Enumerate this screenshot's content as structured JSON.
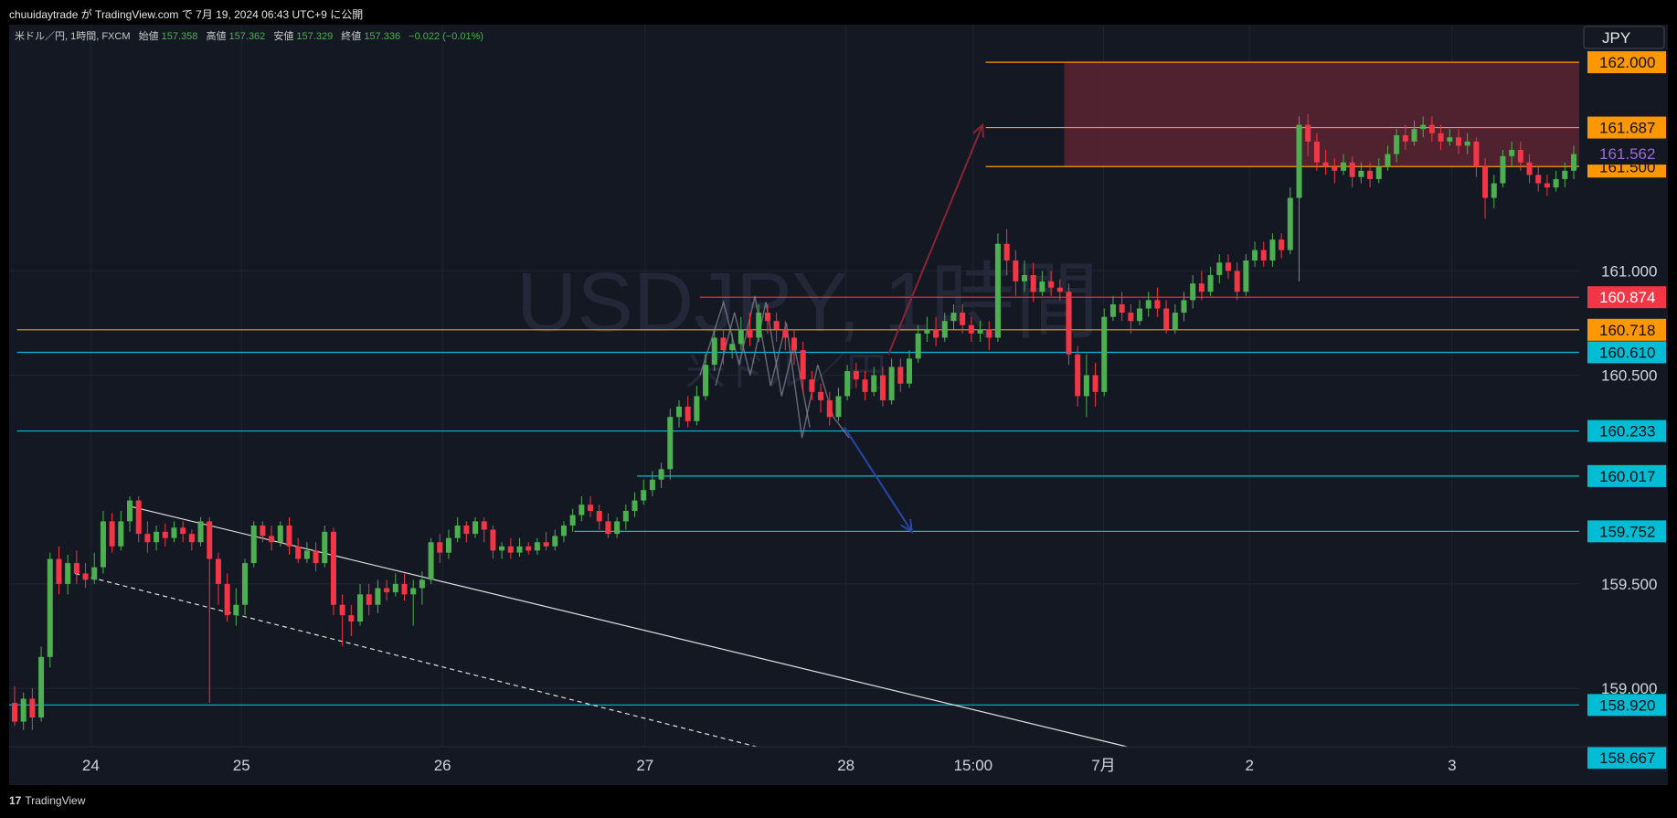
{
  "header": {
    "publish_line": "chuuidaytrade が TradingView.com で 7月 19, 2024 06:43 UTC+9 に公開"
  },
  "legend": {
    "symbol_info": "米ドル／円, 1時間, FXCM",
    "open_label": "始値",
    "open_value": "157.358",
    "high_label": "高値",
    "high_value": "157.362",
    "low_label": "安値",
    "low_value": "157.329",
    "close_label": "終値",
    "close_value": "157.336",
    "change": "−0.022 (−0.01%)"
  },
  "watermark": {
    "main": "USDJPY, 1時間",
    "sub": "米ドル／円"
  },
  "currency_button": "JPY",
  "footer": {
    "logo_text": "TradingView"
  },
  "colors": {
    "background": "#141823",
    "up": "#4caf50",
    "down": "#f23645",
    "orange": "#ff9800",
    "cyan": "#00bcd4",
    "red_level": "#f23645",
    "zone": "#5a2330",
    "current_price": "#9c6ade"
  },
  "chart_data": {
    "type": "candlestick",
    "symbol": "米ドル／円",
    "interval": "1時間",
    "ylim": [
      158.72,
      162.18
    ],
    "grid": true,
    "y_ticks": [
      {
        "value": 161.0,
        "label": "161.000"
      },
      {
        "value": 160.5,
        "label": "160.500"
      },
      {
        "value": 159.5,
        "label": "159.500"
      },
      {
        "value": 159.0,
        "label": "159.000"
      }
    ],
    "x_ticks": [
      {
        "frac": 0.052,
        "label": "24"
      },
      {
        "frac": 0.148,
        "label": "25"
      },
      {
        "frac": 0.276,
        "label": "26"
      },
      {
        "frac": 0.405,
        "label": "27"
      },
      {
        "frac": 0.533,
        "label": "28"
      },
      {
        "frac": 0.614,
        "label": "15:00"
      },
      {
        "frac": 0.697,
        "label": "7月"
      },
      {
        "frac": 0.79,
        "label": "2"
      },
      {
        "frac": 0.919,
        "label": "3"
      }
    ],
    "levels": [
      {
        "value": 162.0,
        "label": "162.000",
        "color": "orange",
        "x_start": 0.622
      },
      {
        "value": 161.687,
        "label": "161.687",
        "color": "orange",
        "x_start": 0.622
      },
      {
        "value": 161.5,
        "label": "161.500",
        "color": "orange",
        "x_start": 0.622
      },
      {
        "value": 160.874,
        "label": "160.874",
        "color": "red",
        "x_start": 0.44
      },
      {
        "value": 160.718,
        "label": "160.718",
        "color": "orange",
        "x_start": 0.005
      },
      {
        "value": 160.61,
        "label": "160.610",
        "color": "cyan",
        "x_start": 0.005
      },
      {
        "value": 160.233,
        "label": "160.233",
        "color": "cyan",
        "x_start": 0.005
      },
      {
        "value": 160.017,
        "label": "160.017",
        "color": "cyan",
        "x_start": 0.4
      },
      {
        "value": 159.752,
        "label": "159.752",
        "color": "cyan",
        "x_start": 0.36
      },
      {
        "value": 158.92,
        "label": "158.920",
        "color": "cyan",
        "x_start": 0.0
      },
      {
        "value": 158.667,
        "label": "158.667",
        "color": "cyan",
        "x_start": null
      }
    ],
    "current_price": {
      "value": 161.562,
      "label": "161.562"
    },
    "zone": {
      "x_start": 0.672,
      "x_end": 1.0,
      "y_top": 162.0,
      "y_bottom": 161.5
    },
    "trendlines": [
      {
        "kind": "solid",
        "from": [
          0.078,
          159.87
        ],
        "to": [
          0.712,
          158.72
        ]
      },
      {
        "kind": "dashed",
        "from": [
          0.042,
          159.55
        ],
        "to": [
          0.476,
          158.72
        ]
      }
    ],
    "scenario_up": [
      [
        0.56,
        160.6
      ],
      [
        0.62,
        161.7
      ]
    ],
    "scenario_down": [
      [
        0.532,
        160.25
      ],
      [
        0.575,
        159.75
      ]
    ],
    "candles": [
      [
        158.93,
        158.84,
        159.01,
        158.82
      ],
      [
        158.84,
        158.95,
        158.98,
        158.8
      ],
      [
        158.95,
        158.86,
        159.0,
        158.8
      ],
      [
        158.86,
        159.15,
        159.2,
        158.84
      ],
      [
        159.15,
        159.62,
        159.65,
        159.1
      ],
      [
        159.62,
        159.5,
        159.68,
        159.45
      ],
      [
        159.5,
        159.6,
        159.64,
        159.45
      ],
      [
        159.6,
        159.55,
        159.66,
        159.5
      ],
      [
        159.55,
        159.52,
        159.6,
        159.48
      ],
      [
        159.52,
        159.58,
        159.65,
        159.5
      ],
      [
        159.58,
        159.8,
        159.85,
        159.55
      ],
      [
        159.8,
        159.68,
        159.84,
        159.65
      ],
      [
        159.68,
        159.8,
        159.85,
        159.66
      ],
      [
        159.8,
        159.9,
        159.92,
        159.75
      ],
      [
        159.9,
        159.74,
        159.92,
        159.7
      ],
      [
        159.74,
        159.7,
        159.8,
        159.65
      ],
      [
        159.7,
        159.75,
        159.78,
        159.66
      ],
      [
        159.75,
        159.72,
        159.79,
        159.68
      ],
      [
        159.72,
        159.77,
        159.8,
        159.7
      ],
      [
        159.77,
        159.74,
        159.8,
        159.7
      ],
      [
        159.74,
        159.7,
        159.76,
        159.66
      ],
      [
        159.7,
        159.8,
        159.82,
        159.68
      ],
      [
        159.8,
        159.62,
        159.82,
        158.93
      ],
      [
        159.62,
        159.5,
        159.65,
        159.4
      ],
      [
        159.5,
        159.35,
        159.55,
        159.32
      ],
      [
        159.35,
        159.4,
        159.48,
        159.3
      ],
      [
        159.4,
        159.6,
        159.62,
        159.35
      ],
      [
        159.6,
        159.78,
        159.8,
        159.58
      ],
      [
        159.78,
        159.73,
        159.8,
        159.7
      ],
      [
        159.73,
        159.7,
        159.78,
        159.66
      ],
      [
        159.7,
        159.78,
        159.8,
        159.68
      ],
      [
        159.78,
        159.68,
        159.82,
        159.64
      ],
      [
        159.68,
        159.62,
        159.72,
        159.6
      ],
      [
        159.62,
        159.66,
        159.7,
        159.6
      ],
      [
        159.66,
        159.6,
        159.7,
        159.56
      ],
      [
        159.6,
        159.75,
        159.78,
        159.58
      ],
      [
        159.75,
        159.4,
        159.77,
        159.35
      ],
      [
        159.4,
        159.35,
        159.45,
        159.2
      ],
      [
        159.35,
        159.32,
        159.4,
        159.25
      ],
      [
        159.32,
        159.45,
        159.5,
        159.3
      ],
      [
        159.45,
        159.4,
        159.5,
        159.35
      ],
      [
        159.4,
        159.48,
        159.52,
        159.36
      ],
      [
        159.48,
        159.46,
        159.52,
        159.42
      ],
      [
        159.46,
        159.5,
        159.55,
        159.44
      ],
      [
        159.5,
        159.45,
        159.55,
        159.42
      ],
      [
        159.45,
        159.48,
        159.52,
        159.3
      ],
      [
        159.48,
        159.52,
        159.56,
        159.4
      ],
      [
        159.52,
        159.7,
        159.72,
        159.5
      ],
      [
        159.7,
        159.65,
        159.74,
        159.6
      ],
      [
        159.65,
        159.72,
        159.76,
        159.62
      ],
      [
        159.72,
        159.78,
        159.82,
        159.7
      ],
      [
        159.78,
        159.74,
        159.8,
        159.7
      ],
      [
        159.74,
        159.8,
        159.82,
        159.72
      ],
      [
        159.8,
        159.76,
        159.82,
        159.7
      ],
      [
        159.76,
        159.66,
        159.78,
        159.62
      ],
      [
        159.66,
        159.68,
        159.7,
        159.62
      ],
      [
        159.68,
        159.65,
        159.72,
        159.62
      ],
      [
        159.65,
        159.68,
        159.72,
        159.63
      ],
      [
        159.68,
        159.66,
        159.7,
        159.64
      ],
      [
        159.66,
        159.7,
        159.72,
        159.64
      ],
      [
        159.7,
        159.68,
        159.75,
        159.66
      ],
      [
        159.68,
        159.73,
        159.76,
        159.66
      ],
      [
        159.73,
        159.78,
        159.8,
        159.7
      ],
      [
        159.78,
        159.83,
        159.86,
        159.75
      ],
      [
        159.83,
        159.88,
        159.92,
        159.8
      ],
      [
        159.88,
        159.85,
        159.92,
        159.82
      ],
      [
        159.85,
        159.8,
        159.88,
        159.76
      ],
      [
        159.8,
        159.74,
        159.84,
        159.72
      ],
      [
        159.74,
        159.8,
        159.82,
        159.72
      ],
      [
        159.8,
        159.85,
        159.88,
        159.76
      ],
      [
        159.85,
        159.9,
        159.94,
        159.82
      ],
      [
        159.9,
        159.95,
        160.0,
        159.88
      ],
      [
        159.95,
        160.0,
        160.04,
        159.92
      ],
      [
        160.0,
        160.05,
        160.08,
        159.96
      ],
      [
        160.05,
        160.3,
        160.34,
        160.0
      ],
      [
        160.3,
        160.35,
        160.38,
        160.25
      ],
      [
        160.35,
        160.28,
        160.4,
        160.25
      ],
      [
        160.28,
        160.4,
        160.45,
        160.26
      ],
      [
        160.4,
        160.55,
        160.6,
        160.38
      ],
      [
        160.55,
        160.68,
        160.72,
        160.52
      ],
      [
        160.68,
        160.62,
        160.72,
        160.55
      ],
      [
        160.62,
        160.65,
        160.7,
        160.58
      ],
      [
        160.65,
        160.72,
        160.78,
        160.62
      ],
      [
        160.72,
        160.68,
        160.8,
        160.64
      ],
      [
        160.68,
        160.8,
        160.84,
        160.66
      ],
      [
        160.8,
        160.76,
        160.84,
        160.7
      ],
      [
        160.76,
        160.72,
        160.8,
        160.66
      ],
      [
        160.72,
        160.68,
        160.76,
        160.62
      ],
      [
        160.68,
        160.62,
        160.72,
        160.55
      ],
      [
        160.62,
        160.48,
        160.66,
        160.42
      ],
      [
        160.48,
        160.42,
        160.52,
        160.38
      ],
      [
        160.42,
        160.38,
        160.46,
        160.32
      ],
      [
        160.38,
        160.3,
        160.42,
        160.26
      ],
      [
        160.3,
        160.4,
        160.44,
        160.28
      ],
      [
        160.4,
        160.52,
        160.55,
        160.38
      ],
      [
        160.52,
        160.48,
        160.56,
        160.44
      ],
      [
        160.48,
        160.42,
        160.52,
        160.38
      ],
      [
        160.42,
        160.5,
        160.54,
        160.4
      ],
      [
        160.5,
        160.38,
        160.54,
        160.35
      ],
      [
        160.38,
        160.54,
        160.58,
        160.36
      ],
      [
        160.54,
        160.46,
        160.58,
        160.42
      ],
      [
        160.46,
        160.58,
        160.62,
        160.44
      ],
      [
        160.58,
        160.7,
        160.74,
        160.56
      ],
      [
        160.7,
        160.72,
        160.78,
        160.66
      ],
      [
        160.72,
        160.68,
        160.78,
        160.64
      ],
      [
        160.68,
        160.76,
        160.8,
        160.66
      ],
      [
        160.76,
        160.8,
        160.84,
        160.72
      ],
      [
        160.8,
        160.74,
        160.84,
        160.7
      ],
      [
        160.74,
        160.7,
        160.78,
        160.66
      ],
      [
        160.7,
        160.72,
        160.76,
        160.66
      ],
      [
        160.72,
        160.68,
        160.76,
        160.62
      ],
      [
        160.68,
        161.13,
        161.18,
        160.66
      ],
      [
        161.13,
        161.05,
        161.2,
        160.98
      ],
      [
        161.05,
        160.95,
        161.1,
        160.88
      ],
      [
        160.95,
        160.98,
        161.05,
        160.9
      ],
      [
        160.98,
        160.9,
        161.04,
        160.85
      ],
      [
        160.9,
        160.95,
        161.0,
        160.88
      ],
      [
        160.95,
        160.92,
        161.0,
        160.88
      ],
      [
        160.92,
        160.9,
        160.96,
        160.86
      ],
      [
        160.9,
        160.6,
        160.94,
        160.55
      ],
      [
        160.6,
        160.4,
        160.64,
        160.35
      ],
      [
        160.4,
        160.5,
        160.6,
        160.3
      ],
      [
        160.5,
        160.42,
        160.56,
        160.35
      ],
      [
        160.42,
        160.78,
        160.82,
        160.4
      ],
      [
        160.78,
        160.84,
        160.88,
        160.76
      ],
      [
        160.84,
        160.8,
        160.9,
        160.76
      ],
      [
        160.8,
        160.76,
        160.84,
        160.7
      ],
      [
        160.76,
        160.82,
        160.86,
        160.74
      ],
      [
        160.82,
        160.86,
        160.9,
        160.78
      ],
      [
        160.86,
        160.82,
        160.92,
        160.78
      ],
      [
        160.82,
        160.72,
        160.86,
        160.7
      ],
      [
        160.72,
        160.8,
        160.84,
        160.7
      ],
      [
        160.8,
        160.86,
        160.9,
        160.76
      ],
      [
        160.86,
        160.94,
        160.98,
        160.82
      ],
      [
        160.94,
        160.9,
        161.0,
        160.86
      ],
      [
        160.9,
        160.98,
        161.02,
        160.88
      ],
      [
        160.98,
        161.04,
        161.08,
        160.94
      ],
      [
        161.04,
        161.0,
        161.08,
        160.96
      ],
      [
        161.0,
        160.9,
        161.04,
        160.86
      ],
      [
        160.9,
        161.05,
        161.08,
        160.88
      ],
      [
        161.05,
        161.1,
        161.14,
        161.02
      ],
      [
        161.1,
        161.05,
        161.14,
        161.02
      ],
      [
        161.05,
        161.15,
        161.18,
        161.02
      ],
      [
        161.15,
        161.1,
        161.18,
        161.06
      ],
      [
        161.1,
        161.35,
        161.4,
        161.08
      ],
      [
        161.35,
        161.7,
        161.74,
        160.95
      ],
      [
        161.7,
        161.62,
        161.75,
        161.55
      ],
      [
        161.62,
        161.52,
        161.66,
        161.48
      ],
      [
        161.52,
        161.5,
        161.58,
        161.46
      ],
      [
        161.5,
        161.48,
        161.54,
        161.42
      ],
      [
        161.48,
        161.52,
        161.56,
        161.46
      ],
      [
        161.52,
        161.45,
        161.55,
        161.4
      ],
      [
        161.45,
        161.48,
        161.52,
        161.42
      ],
      [
        161.48,
        161.44,
        161.52,
        161.4
      ],
      [
        161.44,
        161.5,
        161.54,
        161.42
      ],
      [
        161.5,
        161.56,
        161.6,
        161.48
      ],
      [
        161.56,
        161.65,
        161.68,
        161.52
      ],
      [
        161.65,
        161.62,
        161.7,
        161.58
      ],
      [
        161.62,
        161.68,
        161.72,
        161.6
      ],
      [
        161.68,
        161.7,
        161.74,
        161.64
      ],
      [
        161.7,
        161.66,
        161.74,
        161.62
      ],
      [
        161.66,
        161.62,
        161.7,
        161.58
      ],
      [
        161.62,
        161.64,
        161.68,
        161.6
      ],
      [
        161.64,
        161.6,
        161.68,
        161.56
      ],
      [
        161.6,
        161.62,
        161.66,
        161.56
      ],
      [
        161.62,
        161.5,
        161.64,
        161.45
      ],
      [
        161.5,
        161.35,
        161.54,
        161.25
      ],
      [
        161.35,
        161.42,
        161.46,
        161.3
      ],
      [
        161.42,
        161.55,
        161.58,
        161.4
      ],
      [
        161.55,
        161.58,
        161.62,
        161.5
      ],
      [
        161.58,
        161.52,
        161.62,
        161.48
      ],
      [
        161.52,
        161.46,
        161.56,
        161.42
      ],
      [
        161.46,
        161.42,
        161.5,
        161.38
      ],
      [
        161.42,
        161.4,
        161.46,
        161.36
      ],
      [
        161.4,
        161.44,
        161.48,
        161.38
      ],
      [
        161.44,
        161.48,
        161.52,
        161.4
      ],
      [
        161.48,
        161.56,
        161.6,
        161.44
      ]
    ]
  }
}
